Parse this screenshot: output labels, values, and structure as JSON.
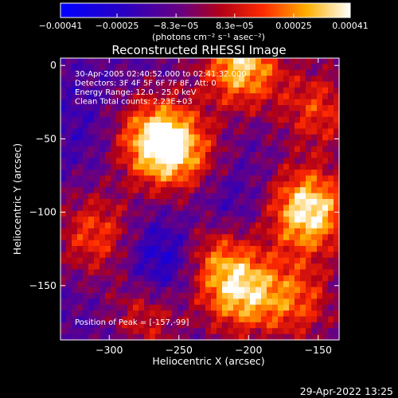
{
  "chart_data": {
    "type": "heatmap",
    "title": "Reconstructed RHESSI Image",
    "xlabel": "Heliocentric X (arcsec)",
    "ylabel": "Heliocentric Y (arcsec)",
    "xlim": [
      -335,
      -135
    ],
    "ylim": [
      -187,
      5
    ],
    "xticks": [
      -300,
      -250,
      -200,
      -150
    ],
    "yticks": [
      0,
      -50,
      -100,
      -150
    ],
    "colorbar": {
      "min": -0.00041,
      "max": 0.00041,
      "ticks": [
        {
          "value": -0.00041,
          "label": "-0.00041"
        },
        {
          "value": -0.00025,
          "label": "-0.00025"
        },
        {
          "value": -8.3e-05,
          "label": "-8.3e-05"
        },
        {
          "value": 8.3e-05,
          "label": "8.3e-05"
        },
        {
          "value": 0.00025,
          "label": "0.00025"
        },
        {
          "value": 0.00041,
          "label": "0.00041"
        }
      ],
      "unit_label": "(photons cm⁻² s⁻¹ asec⁻²)",
      "colormap": "blue-purple-red-yellow-white"
    },
    "annotations": [
      "30-Apr-2005 02:40:52.000 to 02:41:32.000",
      "Detectors: 3F 4F 5F 6F 7F 8F, Att: 0",
      "Energy Range: 12.0 - 25.0 keV",
      "Clean     Total counts: 2.23E+03"
    ],
    "peak_label": "Position of Peak = [-157,-99]",
    "peak": [
      -157,
      -99
    ],
    "bright_sources": [
      {
        "x": -267,
        "y": -50,
        "value": 0.0003
      },
      {
        "x": -205,
        "y": 0,
        "value": 0.00034
      },
      {
        "x": -157,
        "y": -99,
        "value": 0.00041
      },
      {
        "x": -205,
        "y": -155,
        "value": 0.00028
      },
      {
        "x": -250,
        "y": -60,
        "value": 0.00018
      },
      {
        "x": -225,
        "y": -130,
        "value": 0.00016
      },
      {
        "x": -310,
        "y": -115,
        "value": 0.00016
      },
      {
        "x": -150,
        "y": -30,
        "value": 0.00014
      },
      {
        "x": -275,
        "y": -170,
        "value": 0.00012
      },
      {
        "x": -165,
        "y": -160,
        "value": 0.00015
      }
    ],
    "dark_regions": [
      {
        "x": -260,
        "y": -135,
        "value": -0.00035
      },
      {
        "x": -215,
        "y": -100,
        "value": -0.00022
      },
      {
        "x": -320,
        "y": -40,
        "value": -0.00018
      },
      {
        "x": -300,
        "y": -180,
        "value": -0.00016
      }
    ]
  },
  "footer": {
    "datetime": "29-Apr-2022 13:25"
  }
}
